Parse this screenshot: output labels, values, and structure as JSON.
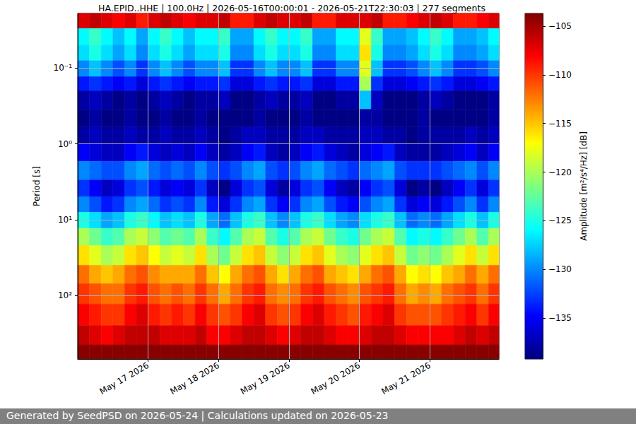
{
  "chart_data": {
    "type": "heatmap",
    "title": "HA.EPID..HHE | 100.0Hz | 2026-05-16T00:00:01 - 2026-05-21T22:30:03 | 277 segments",
    "footer": "Generated by SeedPSD on 2026-05-24 | Calculations updated on 2026-05-23",
    "ylabel": "Period [s]",
    "log": "y",
    "grid": true,
    "xlim": [
      "2026-05-16T00:00",
      "2026-05-21T23:30"
    ],
    "xticks": [
      {
        "value": "2026-05-17T00:00",
        "label": "May 17 2026"
      },
      {
        "value": "2026-05-18T00:00",
        "label": "May 18 2026"
      },
      {
        "value": "2026-05-19T00:00",
        "label": "May 19 2026"
      },
      {
        "value": "2026-05-20T00:00",
        "label": "May 20 2026"
      },
      {
        "value": "2026-05-21T00:00",
        "label": "May 21 2026"
      }
    ],
    "ylim": [
      0.019,
      690
    ],
    "yticks": [
      {
        "value": 0.1,
        "label": "10⁻¹"
      },
      {
        "value": 1,
        "label": "10⁰"
      },
      {
        "value": 10,
        "label": "10¹"
      },
      {
        "value": 100,
        "label": "10²"
      }
    ],
    "colorbar": {
      "label": "Amplitude [m²/s⁴/Hz] [dB]",
      "range": [
        -139.2,
        -103.7
      ],
      "ticks": [
        {
          "value": -135,
          "label": "−135"
        },
        {
          "value": -130,
          "label": "−130"
        },
        {
          "value": -125,
          "label": "−125"
        },
        {
          "value": -120,
          "label": "−120"
        },
        {
          "value": -115,
          "label": "−115"
        },
        {
          "value": -110,
          "label": "−110"
        },
        {
          "value": -105,
          "label": "−105"
        }
      ]
    },
    "x_bins": [
      "2026-05-16T00:00",
      "2026-05-16T04:00",
      "2026-05-16T08:00",
      "2026-05-16T12:00",
      "2026-05-16T16:00",
      "2026-05-16T20:00",
      "2026-05-17T00:00",
      "2026-05-17T04:00",
      "2026-05-17T08:00",
      "2026-05-17T12:00",
      "2026-05-17T16:00",
      "2026-05-17T20:00",
      "2026-05-18T00:00",
      "2026-05-18T04:00",
      "2026-05-18T08:00",
      "2026-05-18T12:00",
      "2026-05-18T16:00",
      "2026-05-18T20:00",
      "2026-05-19T00:00",
      "2026-05-19T04:00",
      "2026-05-19T08:00",
      "2026-05-19T12:00",
      "2026-05-19T16:00",
      "2026-05-19T20:00",
      "2026-05-20T00:00",
      "2026-05-20T04:00",
      "2026-05-20T08:00",
      "2026-05-20T12:00",
      "2026-05-20T16:00",
      "2026-05-20T20:00",
      "2026-05-21T00:00",
      "2026-05-21T04:00",
      "2026-05-21T08:00",
      "2026-05-21T12:00",
      "2026-05-21T16:00",
      "2026-05-21T20:00",
      "2026-05-21T23:30"
    ],
    "y_bins": [
      0.019,
      0.03,
      0.05,
      0.08,
      0.13,
      0.2,
      0.35,
      0.6,
      1,
      1.7,
      3,
      5,
      8,
      13,
      22,
      40,
      70,
      130,
      250,
      450,
      690
    ],
    "values": [
      [
        -107,
        -106,
        -107,
        -108,
        -107,
        -109,
        -107,
        -106,
        -107,
        -108,
        -107,
        -107,
        -106,
        -109,
        -109,
        -107,
        -106,
        -107,
        -107,
        -106,
        -109,
        -109,
        -107,
        -107,
        -107,
        -106,
        -109,
        -109,
        -108,
        -107,
        -106,
        -107,
        -109,
        -109,
        -108,
        -107
      ],
      [
        -126,
        -124,
        -126,
        -128,
        -126,
        -129,
        -126,
        -124,
        -126,
        -128,
        -126,
        -126,
        -124,
        -129,
        -129,
        -126,
        -124,
        -126,
        -126,
        -124,
        -129,
        -129,
        -126,
        -126,
        -118,
        -124,
        -129,
        -129,
        -128,
        -126,
        -124,
        -126,
        -129,
        -129,
        -128,
        -126
      ],
      [
        -127,
        -125,
        -127,
        -129,
        -127,
        -130,
        -127,
        -125,
        -127,
        -129,
        -127,
        -127,
        -125,
        -130,
        -130,
        -127,
        -125,
        -127,
        -127,
        -125,
        -130,
        -130,
        -127,
        -127,
        -116,
        -125,
        -130,
        -130,
        -129,
        -127,
        -125,
        -127,
        -130,
        -130,
        -129,
        -127
      ],
      [
        -130,
        -128,
        -130,
        -132,
        -130,
        -133,
        -130,
        -128,
        -130,
        -132,
        -130,
        -130,
        -128,
        -133,
        -133,
        -130,
        -128,
        -130,
        -130,
        -128,
        -133,
        -133,
        -130,
        -130,
        -118,
        -128,
        -133,
        -133,
        -132,
        -130,
        -128,
        -130,
        -133,
        -133,
        -132,
        -130
      ],
      [
        -134,
        -133,
        -134,
        -135,
        -134,
        -136,
        -134,
        -133,
        -134,
        -135,
        -134,
        -134,
        -133,
        -136,
        -136,
        -134,
        -133,
        -134,
        -134,
        -133,
        -136,
        -136,
        -134,
        -134,
        -120,
        -133,
        -136,
        -136,
        -135,
        -134,
        -133,
        -134,
        -136,
        -136,
        -135,
        -134
      ],
      [
        -138,
        -137,
        -138,
        -139,
        -138,
        -139,
        -138,
        -137,
        -138,
        -139,
        -138,
        -138,
        -137,
        -139,
        -139,
        -138,
        -137,
        -138,
        -138,
        -137,
        -139,
        -139,
        -138,
        -138,
        -128,
        -137,
        -139,
        -139,
        -139,
        -138,
        -137,
        -138,
        -139,
        -139,
        -139,
        -138
      ],
      [
        -139,
        -138,
        -139,
        -139,
        -138,
        -139,
        -139,
        -138,
        -139,
        -139,
        -138,
        -139,
        -139,
        -139,
        -139,
        -138,
        -139,
        -139,
        -139,
        -138,
        -139,
        -139,
        -139,
        -139,
        -138,
        -138,
        -139,
        -139,
        -139,
        -138,
        -139,
        -139,
        -139,
        -139,
        -139,
        -138
      ],
      [
        -138,
        -137,
        -138,
        -138,
        -137,
        -138,
        -138,
        -137,
        -138,
        -138,
        -137,
        -138,
        -139,
        -138,
        -137,
        -137,
        -138,
        -138,
        -138,
        -137,
        -137,
        -138,
        -138,
        -138,
        -137,
        -137,
        -138,
        -138,
        -139,
        -138,
        -138,
        -138,
        -138,
        -137,
        -138,
        -137
      ],
      [
        -135,
        -136,
        -137,
        -137,
        -135,
        -134,
        -136,
        -137,
        -136,
        -137,
        -135,
        -137,
        -138,
        -137,
        -135,
        -134,
        -137,
        -138,
        -137,
        -135,
        -134,
        -136,
        -137,
        -138,
        -136,
        -135,
        -134,
        -137,
        -138,
        -138,
        -138,
        -137,
        -136,
        -135,
        -137,
        -135
      ],
      [
        -130,
        -131,
        -132,
        -132,
        -130,
        -129,
        -131,
        -132,
        -131,
        -132,
        -130,
        -132,
        -133,
        -132,
        -130,
        -129,
        -132,
        -133,
        -132,
        -130,
        -129,
        -131,
        -132,
        -133,
        -131,
        -130,
        -129,
        -132,
        -133,
        -133,
        -133,
        -132,
        -131,
        -130,
        -132,
        -130
      ],
      [
        -133,
        -135,
        -137,
        -136,
        -133,
        -132,
        -134,
        -136,
        -135,
        -136,
        -133,
        -137,
        -139,
        -136,
        -133,
        -132,
        -136,
        -138,
        -136,
        -133,
        -132,
        -135,
        -137,
        -138,
        -135,
        -133,
        -132,
        -136,
        -139,
        -138,
        -139,
        -137,
        -135,
        -133,
        -136,
        -133
      ],
      [
        -130,
        -132,
        -134,
        -133,
        -130,
        -129,
        -131,
        -133,
        -132,
        -133,
        -130,
        -134,
        -136,
        -133,
        -130,
        -129,
        -133,
        -135,
        -133,
        -130,
        -129,
        -132,
        -134,
        -135,
        -132,
        -130,
        -129,
        -133,
        -136,
        -135,
        -136,
        -134,
        -132,
        -130,
        -133,
        -130
      ],
      [
        -125,
        -127,
        -129,
        -128,
        -125,
        -124,
        -126,
        -128,
        -127,
        -128,
        -125,
        -129,
        -131,
        -128,
        -125,
        -124,
        -128,
        -130,
        -128,
        -125,
        -124,
        -127,
        -129,
        -130,
        -127,
        -125,
        -124,
        -128,
        -131,
        -130,
        -131,
        -129,
        -127,
        -125,
        -128,
        -125
      ],
      [
        -120,
        -122,
        -124,
        -123,
        -120,
        -119,
        -121,
        -123,
        -122,
        -123,
        -120,
        -124,
        -126,
        -123,
        -120,
        -119,
        -123,
        -125,
        -123,
        -120,
        -119,
        -122,
        -124,
        -125,
        -122,
        -120,
        -119,
        -123,
        -126,
        -125,
        -126,
        -124,
        -122,
        -120,
        -123,
        -120
      ],
      [
        -116,
        -118,
        -120,
        -119,
        -116,
        -115,
        -117,
        -119,
        -118,
        -119,
        -116,
        -120,
        -122,
        -119,
        -116,
        -115,
        -119,
        -121,
        -119,
        -116,
        -115,
        -118,
        -120,
        -121,
        -118,
        -116,
        -115,
        -119,
        -122,
        -121,
        -122,
        -120,
        -118,
        -116,
        -119,
        -116
      ],
      [
        -112,
        -114,
        -115,
        -114,
        -112,
        -111,
        -113,
        -114,
        -114,
        -114,
        -112,
        -115,
        -117,
        -114,
        -112,
        -111,
        -114,
        -116,
        -114,
        -112,
        -111,
        -114,
        -115,
        -116,
        -114,
        -112,
        -111,
        -114,
        -117,
        -116,
        -117,
        -115,
        -114,
        -112,
        -114,
        -112
      ],
      [
        -110,
        -111,
        -112,
        -112,
        -110,
        -109,
        -111,
        -112,
        -111,
        -112,
        -110,
        -112,
        -114,
        -112,
        -110,
        -109,
        -112,
        -113,
        -112,
        -110,
        -109,
        -111,
        -112,
        -113,
        -111,
        -110,
        -109,
        -112,
        -114,
        -113,
        -114,
        -112,
        -111,
        -110,
        -112,
        -110
      ],
      [
        -108,
        -109,
        -110,
        -110,
        -108,
        -107,
        -109,
        -110,
        -109,
        -110,
        -108,
        -110,
        -111,
        -110,
        -108,
        -107,
        -110,
        -111,
        -110,
        -108,
        -107,
        -109,
        -110,
        -111,
        -109,
        -108,
        -107,
        -110,
        -111,
        -111,
        -111,
        -110,
        -109,
        -108,
        -110,
        -108
      ],
      [
        -106,
        -107,
        -108,
        -107,
        -106,
        -106,
        -106,
        -107,
        -107,
        -107,
        -106,
        -108,
        -108,
        -107,
        -106,
        -106,
        -107,
        -108,
        -107,
        -106,
        -106,
        -107,
        -108,
        -108,
        -107,
        -106,
        -106,
        -107,
        -108,
        -108,
        -108,
        -108,
        -107,
        -106,
        -107,
        -106
      ],
      [
        -104,
        -104,
        -104,
        -104,
        -104,
        -104,
        -104,
        -104,
        -104,
        -104,
        -104,
        -104,
        -104,
        -104,
        -104,
        -104,
        -104,
        -104,
        -104,
        -104,
        -104,
        -104,
        -104,
        -104,
        -104,
        -104,
        -104,
        -104,
        -104,
        -104,
        -104,
        -104,
        -104,
        -104,
        -104,
        -104
      ]
    ]
  }
}
